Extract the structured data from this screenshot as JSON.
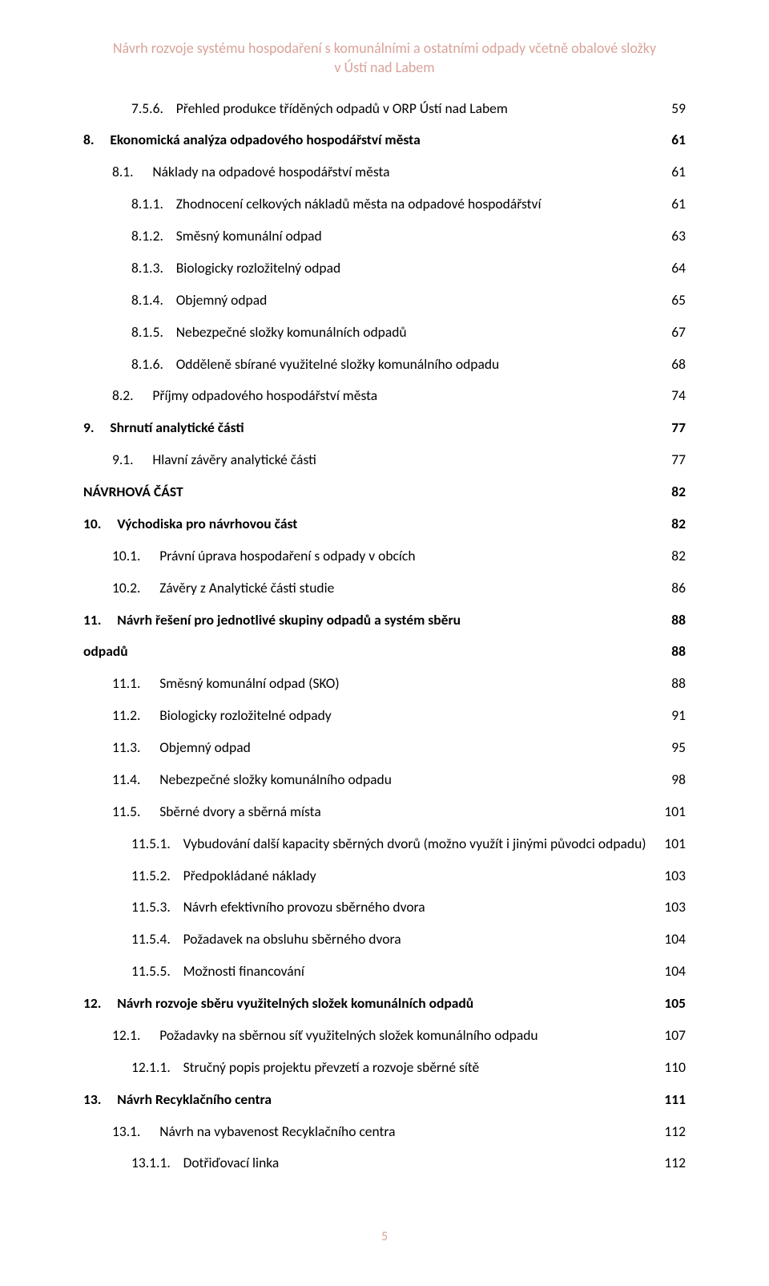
{
  "colors": {
    "header_text": "#d9a39a",
    "body_text": "#000000",
    "background": "#ffffff"
  },
  "typography": {
    "body_fontsize": 17.5,
    "header_fontsize": 18,
    "font_family": "Calibri"
  },
  "header": {
    "line1": "Návrh rozvoje systému hospodaření s komunálními a ostatními odpady včetně obalové složky",
    "line2": "v Ústí nad Labem"
  },
  "footer": {
    "page_number": "5"
  },
  "toc": [
    {
      "level": 3,
      "bold": false,
      "num": "7.5.6.",
      "title": "Přehled produkce tříděných odpadů v ORP Ústí nad Labem",
      "page": "59"
    },
    {
      "level": 0,
      "bold": true,
      "num": "8.",
      "title": "Ekonomická analýza odpadového hospodářství města",
      "page": "61"
    },
    {
      "level": 2,
      "bold": false,
      "num": "8.1.",
      "title": "Náklady na odpadové hospodářství města",
      "page": "61"
    },
    {
      "level": 3,
      "bold": false,
      "num": "8.1.1.",
      "title": "Zhodnocení celkových nákladů města na odpadové hospodářství",
      "page": "61"
    },
    {
      "level": 3,
      "bold": false,
      "num": "8.1.2.",
      "title": "Směsný komunální odpad",
      "page": "63"
    },
    {
      "level": 3,
      "bold": false,
      "num": "8.1.3.",
      "title": "Biologicky rozložitelný odpad",
      "page": "64"
    },
    {
      "level": 3,
      "bold": false,
      "num": "8.1.4.",
      "title": "Objemný odpad",
      "page": "65"
    },
    {
      "level": 3,
      "bold": false,
      "num": "8.1.5.",
      "title": "Nebezpečné složky komunálních odpadů",
      "page": "67"
    },
    {
      "level": 3,
      "bold": false,
      "num": "8.1.6.",
      "title": "Odděleně sbírané využitelné složky komunálního odpadu",
      "page": "68"
    },
    {
      "level": 2,
      "bold": false,
      "num": "8.2.",
      "title": "Příjmy odpadového hospodářství města",
      "page": "74"
    },
    {
      "level": 0,
      "bold": true,
      "num": "9.",
      "title": "Shrnutí analytické části",
      "page": "77"
    },
    {
      "level": 2,
      "bold": false,
      "num": "9.1.",
      "title": "Hlavní závěry analytické části",
      "page": "77"
    },
    {
      "level": 1,
      "bold": true,
      "num": "",
      "title": "NÁVRHOVÁ ČÁST",
      "page": "82"
    },
    {
      "level": 0,
      "bold": true,
      "num": "10.",
      "title": "Východiska pro návrhovou část",
      "page": "82"
    },
    {
      "level": 2,
      "bold": false,
      "num": "10.1.",
      "title": "Právní úprava hospodaření s odpady v obcích",
      "page": "82"
    },
    {
      "level": 2,
      "bold": false,
      "num": "10.2.",
      "title": "Závěry z Analytické části studie",
      "page": "86"
    },
    {
      "level": 0,
      "bold": true,
      "num": "11.",
      "title": "Návrh řešení pro jednotlivé skupiny odpadů a systém sběru",
      "page": "88"
    },
    {
      "level": 1,
      "bold": true,
      "num": "",
      "title": "odpadů",
      "page": "88"
    },
    {
      "level": 2,
      "bold": false,
      "num": "11.1.",
      "title": "Směsný komunální odpad (SKO)",
      "page": "88"
    },
    {
      "level": 2,
      "bold": false,
      "num": "11.2.",
      "title": "Biologicky rozložitelné odpady",
      "page": "91"
    },
    {
      "level": 2,
      "bold": false,
      "num": "11.3.",
      "title": "Objemný odpad",
      "page": "95"
    },
    {
      "level": 2,
      "bold": false,
      "num": "11.4.",
      "title": "Nebezpečné složky komunálního odpadu",
      "page": "98"
    },
    {
      "level": 2,
      "bold": false,
      "num": "11.5.",
      "title": "Sběrné dvory a sběrná místa",
      "page": "101"
    },
    {
      "level": 3,
      "bold": false,
      "num": "11.5.1.",
      "title": "Vybudování další kapacity sběrných dvorů (možno využít i jinými původci odpadu)",
      "page": "101"
    },
    {
      "level": 3,
      "bold": false,
      "num": "11.5.2.",
      "title": "Předpokládané náklady",
      "page": "103"
    },
    {
      "level": 3,
      "bold": false,
      "num": "11.5.3.",
      "title": "Návrh efektivního provozu sběrného dvora",
      "page": "103"
    },
    {
      "level": 3,
      "bold": false,
      "num": "11.5.4.",
      "title": "Požadavek na obsluhu sběrného dvora",
      "page": "104"
    },
    {
      "level": 3,
      "bold": false,
      "num": "11.5.5.",
      "title": "Možnosti financování",
      "page": "104"
    },
    {
      "level": 0,
      "bold": true,
      "num": "12.",
      "title": "Návrh rozvoje sběru využitelných složek komunálních odpadů",
      "page": "105"
    },
    {
      "level": 2,
      "bold": false,
      "num": "12.1.",
      "title": "Požadavky na sběrnou síť využitelných složek komunálního odpadu",
      "page": "107"
    },
    {
      "level": 3,
      "bold": false,
      "num": "12.1.1.",
      "title": "Stručný popis projektu převzetí a rozvoje sběrné sítě",
      "page": "110"
    },
    {
      "level": 0,
      "bold": true,
      "num": "13.",
      "title": "Návrh Recyklačního centra",
      "page": "111"
    },
    {
      "level": 2,
      "bold": false,
      "num": "13.1.",
      "title": "Návrh na vybavenost Recyklačního centra",
      "page": "112"
    },
    {
      "level": 3,
      "bold": false,
      "num": "13.1.1.",
      "title": "Dotřiďovací linka",
      "page": "112"
    }
  ]
}
